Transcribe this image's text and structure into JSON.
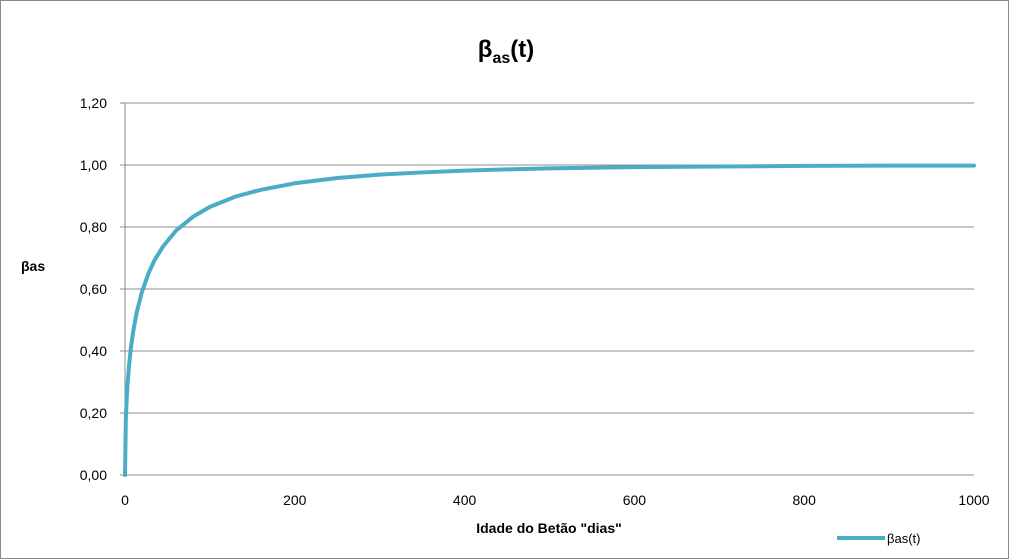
{
  "chart_data": {
    "type": "line",
    "title": "βas(t)",
    "title_main": "β",
    "title_sub": "as",
    "title_suffix": "(t)",
    "xlabel": "Idade do Betão \"dias\"",
    "ylabel": "βas",
    "xlim": [
      0,
      1000
    ],
    "ylim": [
      0,
      1.2
    ],
    "x_ticks": [
      "0",
      "200",
      "400",
      "600",
      "800",
      "1000"
    ],
    "y_ticks": [
      "0,00",
      "0,20",
      "0,40",
      "0,60",
      "0,80",
      "1,00",
      "1,20"
    ],
    "grid": "horizontal",
    "legend_position": "bottom-right",
    "series": [
      {
        "name": "βas(t)",
        "color": "#4BACC6",
        "x": [
          0,
          1,
          2,
          3,
          5,
          7,
          10,
          14,
          20,
          28,
          35,
          45,
          60,
          80,
          100,
          130,
          160,
          200,
          250,
          300,
          350,
          400,
          450,
          500,
          600,
          700,
          800,
          900,
          1000
        ],
        "y": [
          0.0,
          0.181,
          0.246,
          0.293,
          0.361,
          0.411,
          0.469,
          0.527,
          0.591,
          0.653,
          0.694,
          0.738,
          0.788,
          0.833,
          0.865,
          0.898,
          0.92,
          0.941,
          0.958,
          0.969,
          0.976,
          0.982,
          0.986,
          0.989,
          0.993,
          0.995,
          0.997,
          0.998,
          0.998
        ]
      }
    ]
  }
}
